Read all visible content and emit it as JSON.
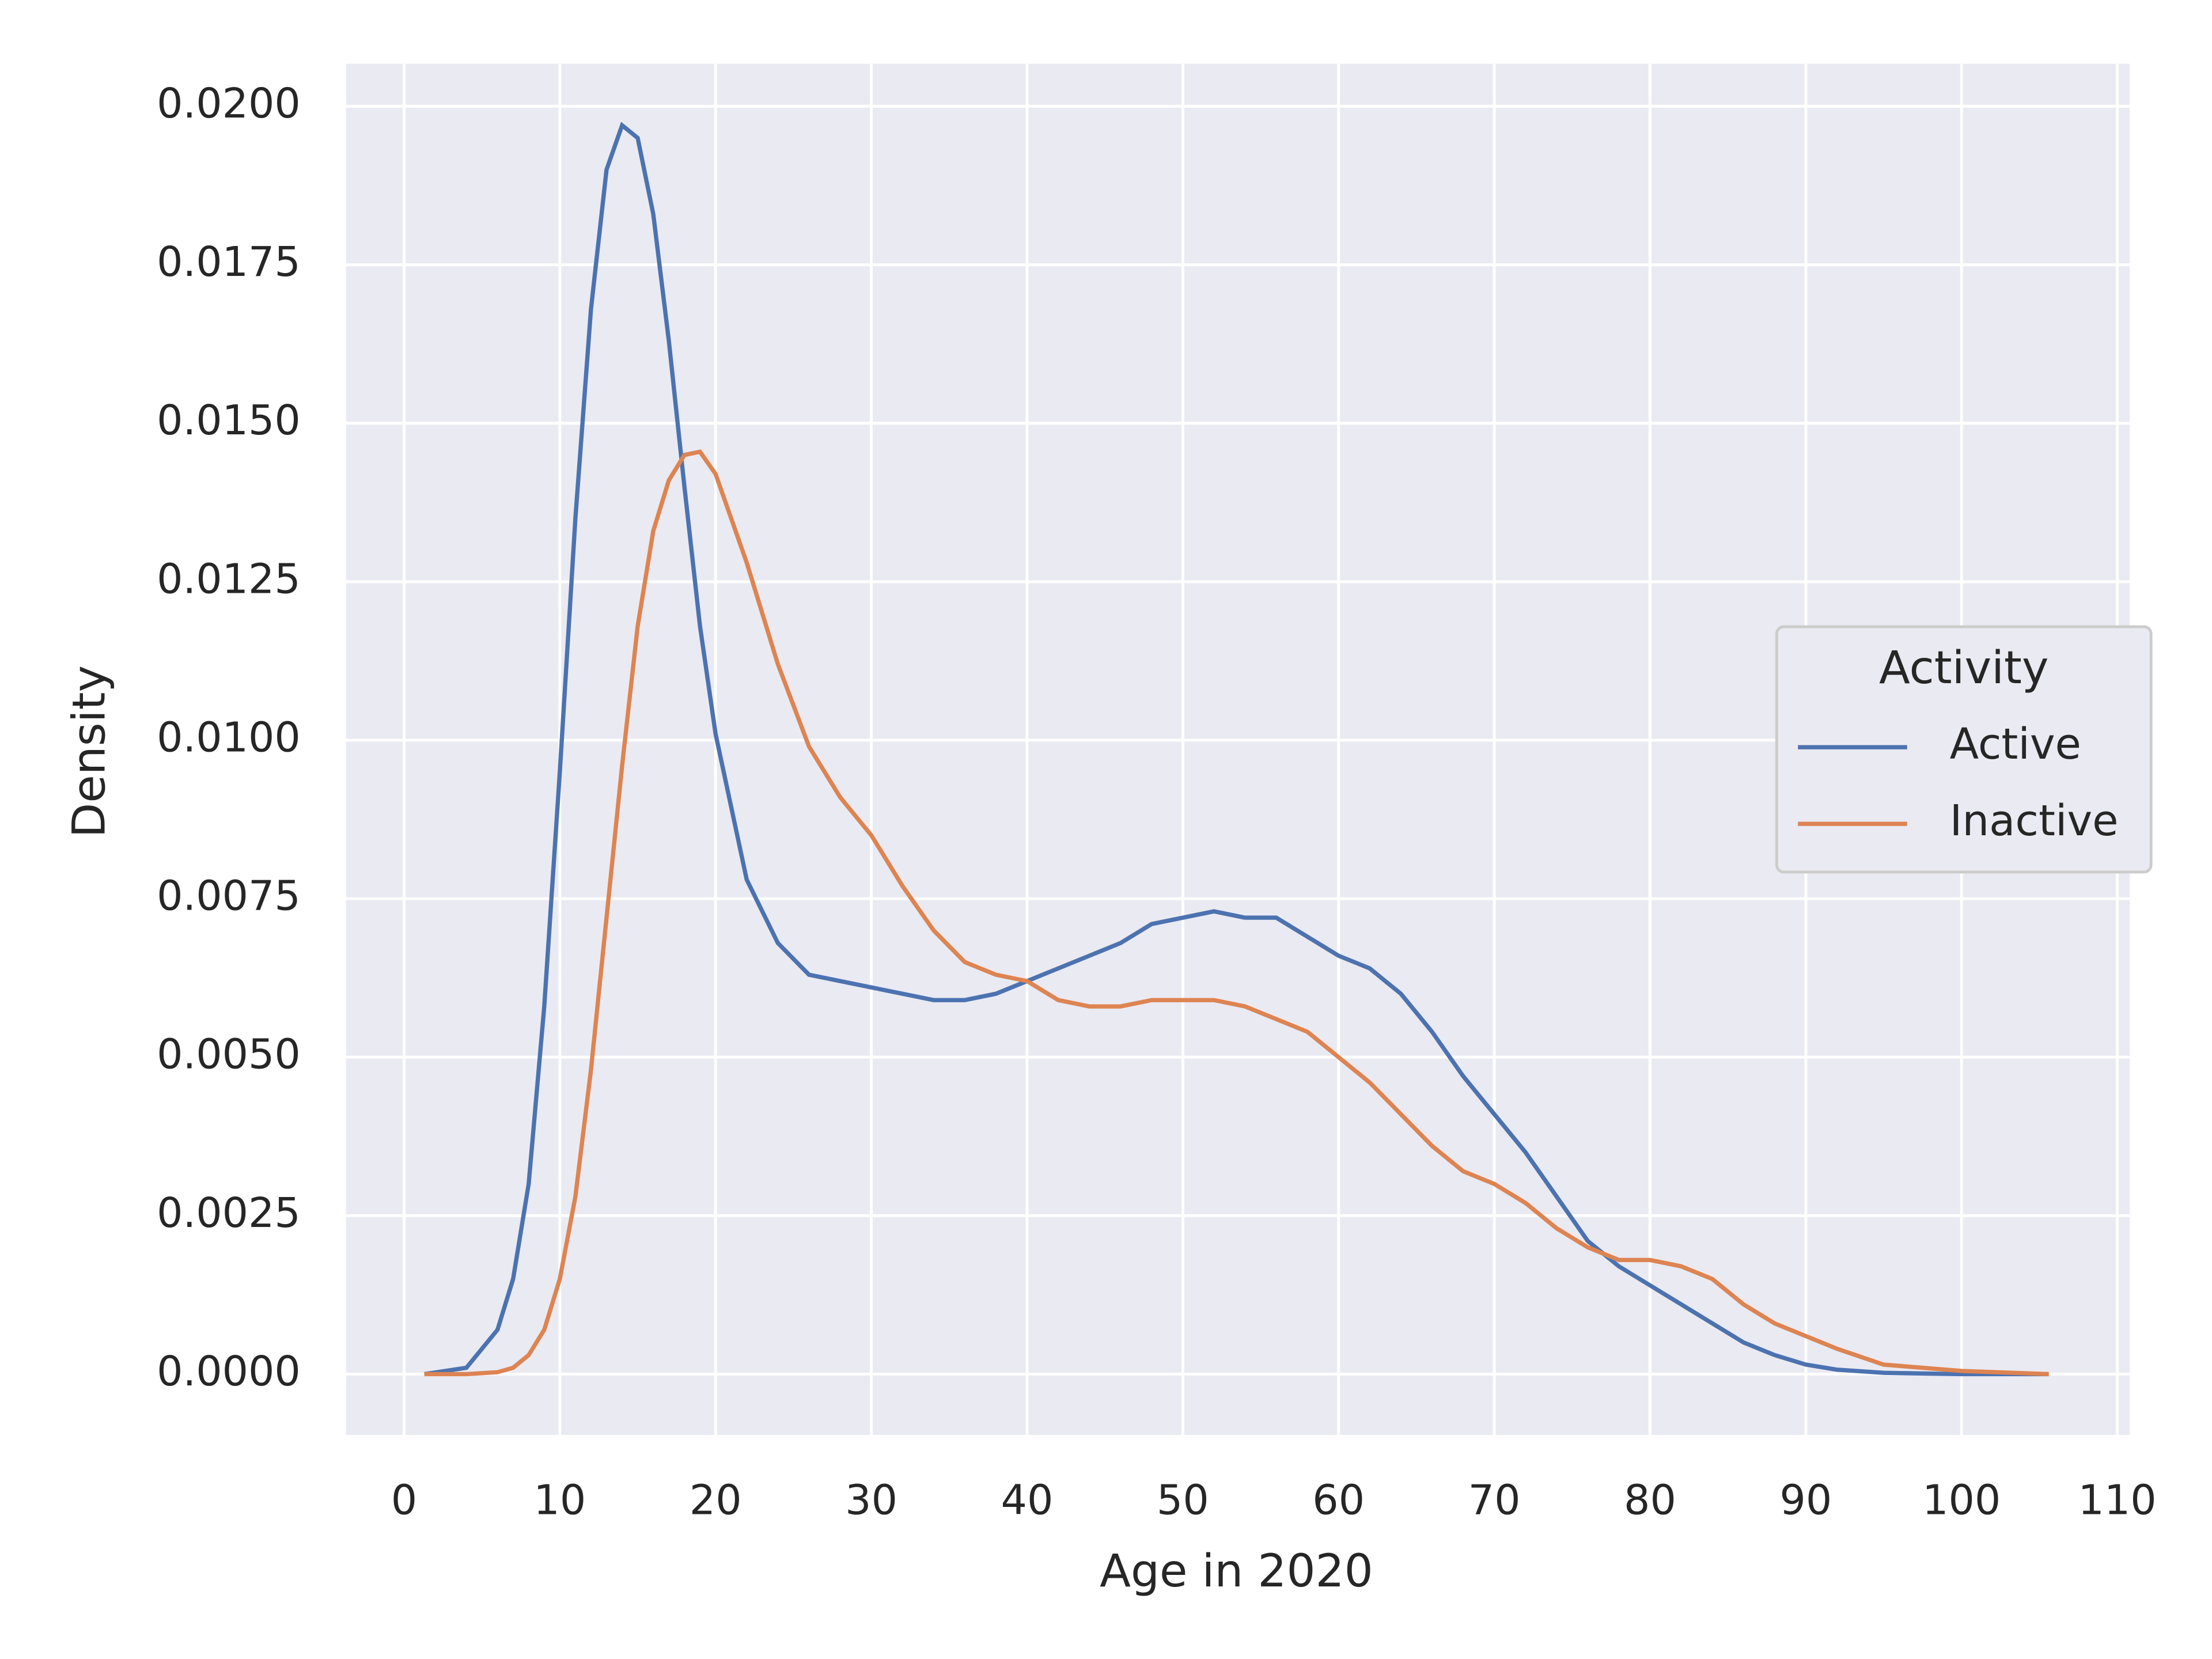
{
  "chart_data": {
    "type": "line",
    "xlabel": "Age in 2020",
    "ylabel": "Density",
    "legend_title": "Activity",
    "legend_loc": "center right",
    "grid": true,
    "x": [
      1.3,
      4,
      6,
      7,
      8,
      9,
      10,
      11,
      12,
      13,
      14,
      15,
      16,
      17,
      18,
      19,
      20,
      22,
      24,
      26,
      28,
      30,
      32,
      34,
      36,
      38,
      40,
      42,
      44,
      46,
      48,
      50,
      52,
      54,
      56,
      58,
      60,
      62,
      64,
      66,
      68,
      70,
      72,
      74,
      76,
      78,
      80,
      82,
      84,
      86,
      88,
      90,
      92,
      95,
      100,
      105.6
    ],
    "series": [
      {
        "name": "Active",
        "color": "#4c72b0",
        "values": [
          0,
          0.0001,
          0.0007,
          0.0015,
          0.003,
          0.0058,
          0.0095,
          0.0135,
          0.0168,
          0.019,
          0.0197,
          0.0195,
          0.0183,
          0.0163,
          0.014,
          0.0118,
          0.0101,
          0.0078,
          0.0068,
          0.0063,
          0.0062,
          0.0061,
          0.006,
          0.0059,
          0.0059,
          0.006,
          0.0062,
          0.0064,
          0.0066,
          0.0068,
          0.0071,
          0.0072,
          0.0073,
          0.0072,
          0.0072,
          0.0069,
          0.0066,
          0.0064,
          0.006,
          0.0054,
          0.0047,
          0.0041,
          0.0035,
          0.0028,
          0.0021,
          0.0017,
          0.0014,
          0.0011,
          0.0008,
          0.0005,
          0.0003,
          0.00015,
          7e-05,
          2e-05,
          0,
          0
        ]
      },
      {
        "name": "Inactive",
        "color": "#dd8452",
        "values": [
          0,
          0,
          3e-05,
          0.0001,
          0.0003,
          0.0007,
          0.0015,
          0.0028,
          0.0048,
          0.0072,
          0.0096,
          0.0118,
          0.0133,
          0.0141,
          0.0145,
          0.01455,
          0.0142,
          0.0128,
          0.0112,
          0.0099,
          0.0091,
          0.0085,
          0.0077,
          0.007,
          0.0065,
          0.0063,
          0.0062,
          0.0059,
          0.0058,
          0.0058,
          0.0059,
          0.0059,
          0.0059,
          0.0058,
          0.0056,
          0.0054,
          0.005,
          0.0046,
          0.0041,
          0.0036,
          0.0032,
          0.003,
          0.0027,
          0.0023,
          0.002,
          0.0018,
          0.0018,
          0.0017,
          0.0015,
          0.0011,
          0.0008,
          0.0006,
          0.0004,
          0.00015,
          5e-05,
          0
        ]
      }
    ],
    "xlim": [
      -3.73,
      110.8
    ],
    "ylim": [
      -0.00096,
      0.02067
    ],
    "xticks": [
      0,
      10,
      20,
      30,
      40,
      50,
      60,
      70,
      80,
      90,
      100,
      110
    ],
    "yticks": [
      {
        "value": 0,
        "label": "0.0000"
      },
      {
        "value": 0.0025,
        "label": "0.0025"
      },
      {
        "value": 0.005,
        "label": "0.0050"
      },
      {
        "value": 0.0075,
        "label": "0.0075"
      },
      {
        "value": 0.01,
        "label": "0.0100"
      },
      {
        "value": 0.0125,
        "label": "0.0125"
      },
      {
        "value": 0.015,
        "label": "0.0150"
      },
      {
        "value": 0.0175,
        "label": "0.0175"
      },
      {
        "value": 0.02,
        "label": "0.0200"
      }
    ]
  }
}
